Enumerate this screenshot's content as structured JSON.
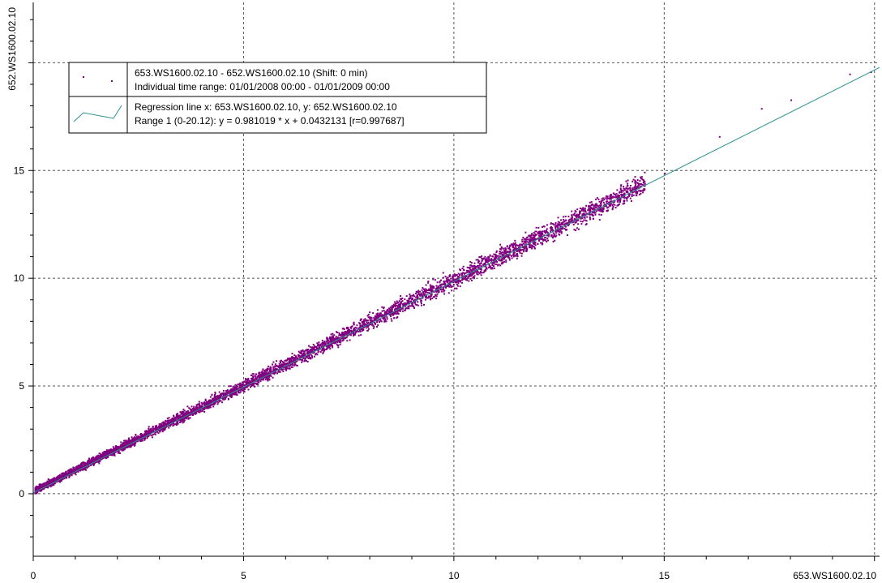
{
  "chart_data": {
    "type": "scatter",
    "xlabel": "653.WS1600.02.10",
    "ylabel": "652.WS1600.02.10",
    "xlim": [
      0,
      20.12
    ],
    "ylim": [
      -2.9,
      22.8
    ],
    "xticks": [
      0,
      5,
      10,
      15
    ],
    "yticks": [
      0,
      5,
      10,
      15
    ],
    "grid": true,
    "legend_position": "top-left",
    "legend": {
      "scatter_line1": "653.WS1600.02.10 - 652.WS1600.02.10 (Shift: 0 min)",
      "scatter_line2": "Individual time range: 01/01/2008  00:00 - 01/01/2009  00:00",
      "regression_line1": "Regression line    x: 653.WS1600.02.10,  y: 652.WS1600.02.10",
      "regression_line2": "Range 1 (0-20.12):  y = 0.981019 * x + 0.0432131  [r=0.997687]"
    },
    "regression": {
      "slope": 0.981019,
      "intercept": 0.0432131,
      "r": 0.997687,
      "range": [
        0,
        20.12
      ]
    },
    "series": [
      {
        "values": "dense scatter of paired values roughly along the regression line",
        "points_sample": [
          [
            0.2,
            0.35
          ],
          [
            1.0,
            1.05
          ],
          [
            2.0,
            2.0
          ],
          [
            3.0,
            3.0
          ],
          [
            4.0,
            4.0
          ],
          [
            5.0,
            4.95
          ],
          [
            6.0,
            5.95
          ],
          [
            7.0,
            6.9
          ],
          [
            8.0,
            7.9
          ],
          [
            9.0,
            8.9
          ],
          [
            10.0,
            9.9
          ],
          [
            11.0,
            10.8
          ],
          [
            12.0,
            11.9
          ],
          [
            13.0,
            12.8
          ],
          [
            14.0,
            13.8
          ],
          [
            15.0,
            14.9
          ],
          [
            16.3,
            16.6
          ],
          [
            17.3,
            17.9
          ],
          [
            18.0,
            18.3
          ],
          [
            19.4,
            19.5
          ],
          [
            19.9,
            19.6
          ]
        ]
      }
    ],
    "colors": {
      "points": "#800080",
      "regression": "#2a8f8f",
      "grid": "#555555"
    }
  }
}
